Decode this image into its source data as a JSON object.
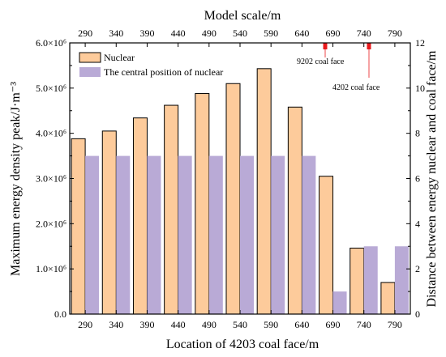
{
  "chart_data": {
    "type": "bar",
    "title": "",
    "top_axis_label": "Model scale/m",
    "top_ticks": [
      "290",
      "340",
      "390",
      "440",
      "490",
      "540",
      "590",
      "640",
      "690",
      "740",
      "790"
    ],
    "xlabel": "Location of 4203 coal face/m",
    "ylabel_left": "Maximum energy density peak/J·m⁻³",
    "ylabel_right": "Distance between energy nuclear and coal face/m",
    "categories": [
      "290",
      "340",
      "390",
      "440",
      "490",
      "540",
      "590",
      "640",
      "690",
      "740",
      "790"
    ],
    "ylim_left": [
      0,
      6000000
    ],
    "ylim_right": [
      0,
      12
    ],
    "left_ticks": [
      {
        "value": 0,
        "label": "0.0"
      },
      {
        "value": 1000000,
        "label": "1.0×10⁶"
      },
      {
        "value": 2000000,
        "label": "2.0×10⁶"
      },
      {
        "value": 3000000,
        "label": "3.0×10⁶"
      },
      {
        "value": 4000000,
        "label": "4.0×10⁶"
      },
      {
        "value": 5000000,
        "label": "5.0×10⁶"
      },
      {
        "value": 6000000,
        "label": "6.0×10⁶"
      }
    ],
    "right_ticks": [
      {
        "value": 0,
        "label": "0"
      },
      {
        "value": 2,
        "label": "2"
      },
      {
        "value": 4,
        "label": "4"
      },
      {
        "value": 6,
        "label": "6"
      },
      {
        "value": 8,
        "label": "8"
      },
      {
        "value": 10,
        "label": "10"
      },
      {
        "value": 12,
        "label": "12"
      }
    ],
    "series": [
      {
        "name": "Nuclear",
        "axis": "left",
        "color": "#fdcb9b",
        "values": [
          3880000,
          4050000,
          4340000,
          4620000,
          4880000,
          5100000,
          5430000,
          4580000,
          3050000,
          1460000,
          700000
        ]
      },
      {
        "name": "The central position of nuclear",
        "axis": "right",
        "color": "#b9aad6",
        "values": [
          7,
          7,
          7,
          7,
          7,
          7,
          7,
          7,
          1,
          3,
          3
        ]
      }
    ],
    "legend_position": "top-left",
    "grid": false,
    "annotations": [
      {
        "text": "9202 coal face",
        "x_model_scale": 690,
        "color": "#e8191c"
      },
      {
        "text": "4202 coal face",
        "x_model_scale": 740,
        "color": "#e8191c"
      }
    ]
  }
}
